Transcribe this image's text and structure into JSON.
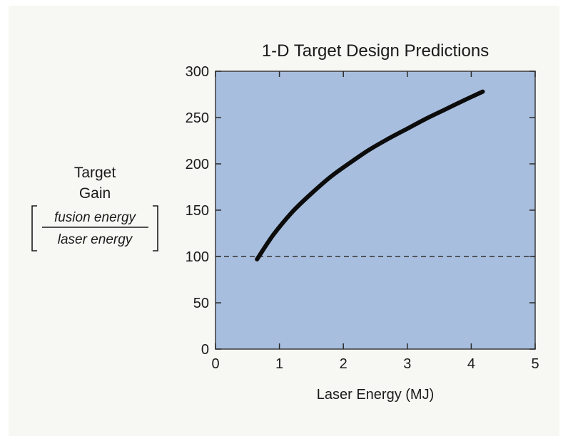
{
  "chart_data": {
    "type": "line",
    "title": "1-D Target Design Predictions",
    "xlabel": "Laser Energy (MJ)",
    "ylabel": {
      "line1": "Target",
      "line2": "Gain",
      "numerator": "fusion energy",
      "denominator": "laser energy"
    },
    "xlim": [
      0,
      5
    ],
    "ylim": [
      0,
      300
    ],
    "xticks": [
      "0",
      "1",
      "2",
      "3",
      "4",
      "5"
    ],
    "yticks": [
      "0",
      "50",
      "100",
      "150",
      "200",
      "250",
      "300"
    ],
    "grid": false,
    "series": [
      {
        "x": [
          0.65,
          0.9,
          1.2,
          1.5,
          1.8,
          2.1,
          2.4,
          2.7,
          3.0,
          3.3,
          3.6,
          3.9,
          4.18
        ],
        "y": [
          97,
          123,
          148,
          168,
          186,
          201,
          215,
          227,
          238,
          249,
          259,
          269,
          278
        ]
      }
    ],
    "reference_line": {
      "y": 100,
      "style": "dashed"
    },
    "colors": {
      "plot_background": "#a8bede",
      "curve": "#0c0c0c",
      "figure_background": "#f7f7f3"
    }
  }
}
